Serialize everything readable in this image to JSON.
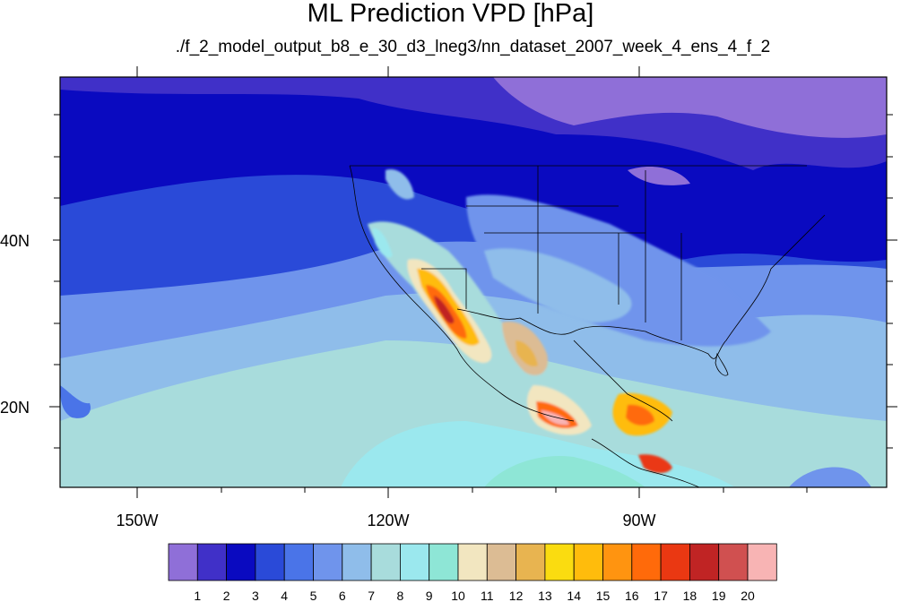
{
  "title": "ML Prediction VPD [hPa]",
  "subtitle": "./f_2_model_output_b8_e_30_d3_lneg3/nn_dataset_2007_week_4_ens_4_f_2",
  "map": {
    "lon_range": [
      -160,
      -60
    ],
    "lat_range": [
      10,
      59
    ],
    "lat_labels": [
      "40N",
      "20N"
    ],
    "lon_labels": [
      "150W",
      "120W",
      "90W"
    ]
  },
  "colorbar": {
    "labels": [
      "1",
      "2",
      "3",
      "4",
      "5",
      "6",
      "7",
      "8",
      "9",
      "10",
      "11",
      "12",
      "13",
      "14",
      "15",
      "16",
      "17",
      "18",
      "19",
      "20"
    ],
    "colors": [
      "#8f6fd8",
      "#4030c8",
      "#0a0ac0",
      "#2a4ad8",
      "#4a74e8",
      "#6f94ec",
      "#8fbdea",
      "#a8dcdc",
      "#9be8ee",
      "#8ee6d6",
      "#f2e6c0",
      "#dcbc94",
      "#e8b450",
      "#fadc10",
      "#ffbc0c",
      "#ff9410",
      "#ff6a0a",
      "#ea3812",
      "#c02424",
      "#d05050",
      "#f8b4b4"
    ]
  }
}
